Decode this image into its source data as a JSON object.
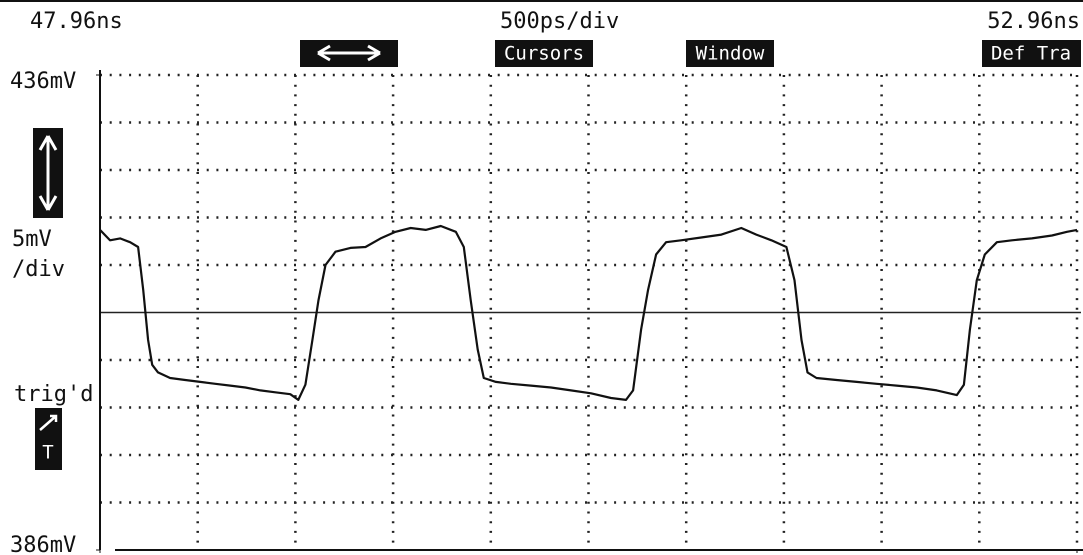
{
  "chart_data": {
    "type": "line",
    "division_x": "500ps/div",
    "division_y": [
      "5mV",
      "/div"
    ],
    "status": "trig'd",
    "buttons": [
      "Cursors",
      "Window",
      "Def Tra"
    ],
    "trigger_icon": "T",
    "xlim": [
      47.96,
      52.96
    ],
    "xticks": [
      {
        "value": 47.96,
        "label": "47.96ns"
      },
      {
        "value": 52.96,
        "label": "52.96ns"
      }
    ],
    "xgrid": [
      48.46,
      48.96,
      49.46,
      49.96,
      50.46,
      50.96,
      51.46,
      51.96,
      52.46,
      52.96
    ],
    "ylim": [
      386,
      436
    ],
    "yticks": [
      {
        "value": 436,
        "label": "436mV"
      },
      {
        "value": 386,
        "label": "386mV"
      }
    ],
    "ygrid": [
      391,
      396,
      401,
      406,
      416,
      421,
      426,
      431,
      436
    ],
    "reference_level": 411,
    "grid": true,
    "series": [
      {
        "color": "#111111",
        "x": [
          47.96,
          48.011,
          48.063,
          48.114,
          48.155,
          48.181,
          48.206,
          48.227,
          48.257,
          48.319,
          48.396,
          48.473,
          48.55,
          48.627,
          48.704,
          48.781,
          48.857,
          48.934,
          48.975,
          49.011,
          49.047,
          49.078,
          49.114,
          49.165,
          49.242,
          49.319,
          49.396,
          49.473,
          49.55,
          49.627,
          49.704,
          49.781,
          49.822,
          49.857,
          49.893,
          49.924,
          49.986,
          50.063,
          50.165,
          50.268,
          50.37,
          50.473,
          50.575,
          50.652,
          50.688,
          50.729,
          50.765,
          50.806,
          50.857,
          50.934,
          51.037,
          51.14,
          51.242,
          51.319,
          51.396,
          51.473,
          51.514,
          51.55,
          51.581,
          51.627,
          51.729,
          51.832,
          51.934,
          52.037,
          52.14,
          52.242,
          52.345,
          52.381,
          52.412,
          52.447,
          52.488,
          52.55,
          52.627,
          52.729,
          52.832,
          52.909,
          52.96
        ],
        "values": [
          419.7,
          418.6,
          418.8,
          418.4,
          417.9,
          413.4,
          408.1,
          405.5,
          404.7,
          404.1,
          403.9,
          403.7,
          403.5,
          403.3,
          403.1,
          402.8,
          402.6,
          402.4,
          401.8,
          403.4,
          408.1,
          412.3,
          416.0,
          417.4,
          417.8,
          417.9,
          418.8,
          419.5,
          419.9,
          419.7,
          420.1,
          419.5,
          417.9,
          412.3,
          407.1,
          404.1,
          403.7,
          403.5,
          403.3,
          403.1,
          402.8,
          402.5,
          402.0,
          401.8,
          402.8,
          409.2,
          413.4,
          417.1,
          418.4,
          418.6,
          418.9,
          419.2,
          419.9,
          419.2,
          418.6,
          417.9,
          414.4,
          408.1,
          404.7,
          404.1,
          403.9,
          403.7,
          403.5,
          403.3,
          403.1,
          402.8,
          402.3,
          403.4,
          409.2,
          414.4,
          417.1,
          418.4,
          418.6,
          418.8,
          419.1,
          419.5,
          419.7
        ]
      }
    ]
  }
}
